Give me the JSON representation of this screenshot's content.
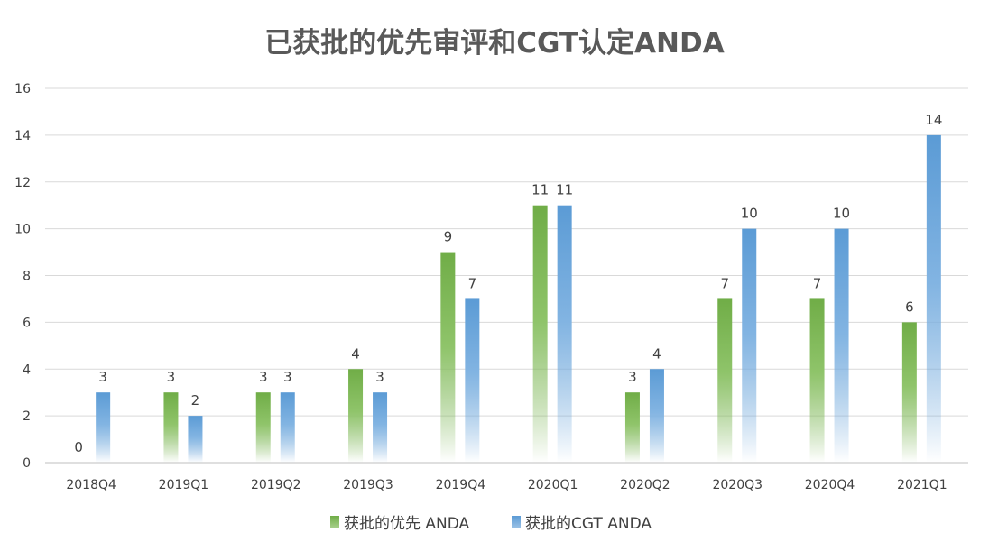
{
  "chart_data": {
    "type": "bar",
    "title": "已获批的优先审评和CGT认定ANDA",
    "categories": [
      "2018Q4",
      "2019Q1",
      "2019Q2",
      "2019Q3",
      "2019Q4",
      "2020Q1",
      "2020Q2",
      "2020Q3",
      "2020Q4",
      "2021Q1"
    ],
    "series": [
      {
        "name": "获批的优先 ANDA",
        "values": [
          0,
          3,
          3,
          4,
          9,
          11,
          3,
          7,
          7,
          6
        ],
        "color": "#70ad47"
      },
      {
        "name": "获批的CGT ANDA",
        "values": [
          3,
          2,
          3,
          3,
          7,
          11,
          4,
          10,
          10,
          14
        ],
        "color": "#5b9bd5"
      }
    ],
    "ylim": [
      0,
      16
    ],
    "yticks": [
      "0",
      "2",
      "4",
      "6",
      "8",
      "10",
      "12",
      "14",
      "16"
    ],
    "grid": true,
    "legend": "bottom",
    "data_labels": true
  }
}
